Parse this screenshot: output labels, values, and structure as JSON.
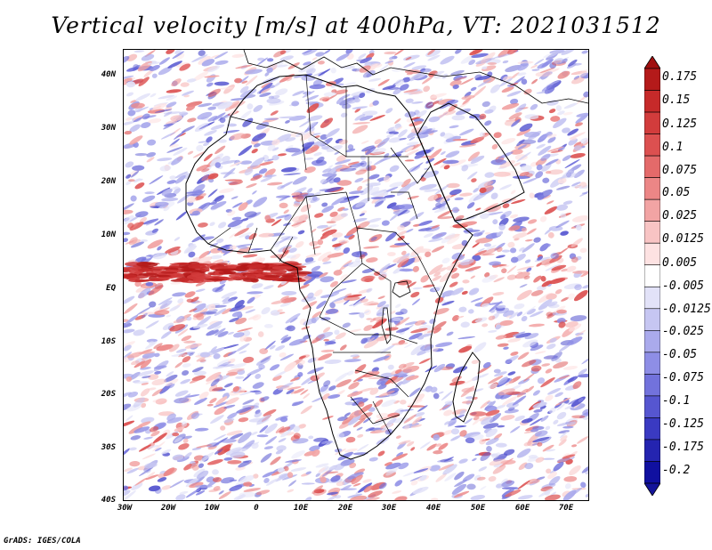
{
  "title": "Vertical velocity [m/s] at 400hPa, VT: 2021031512",
  "axes": {
    "lat_labels": [
      "40N",
      "30N",
      "20N",
      "10N",
      "EQ",
      "10S",
      "20S",
      "30S",
      "40S"
    ],
    "lon_labels": [
      "30W",
      "20W",
      "10W",
      "0",
      "10E",
      "20E",
      "30E",
      "40E",
      "50E",
      "60E",
      "70E"
    ],
    "lat_range": [
      -40,
      45
    ],
    "lon_range": [
      -30,
      75
    ]
  },
  "colorbar": {
    "labels": [
      "0.175",
      "0.15",
      "0.125",
      "0.1",
      "0.075",
      "0.05",
      "0.025",
      "0.0125",
      "0.005",
      "-0.005",
      "-0.0125",
      "-0.025",
      "-0.05",
      "-0.075",
      "-0.1",
      "-0.125",
      "-0.175",
      "-0.2"
    ],
    "colors": [
      "#b41a1a",
      "#c62a2a",
      "#d23c3c",
      "#dc5050",
      "#e46a6a",
      "#ec8686",
      "#f2a4a4",
      "#f8c4c4",
      "#fde2e2",
      "#ffffff",
      "#e2e2f8",
      "#c6c6f2",
      "#aaaaec",
      "#8e8ee6",
      "#7272dc",
      "#5656d0",
      "#3a3ac2",
      "#2424b0",
      "#1010a0"
    ],
    "top_arrow_color": "#a01010",
    "bottom_arrow_color": "#14149a"
  },
  "map": {
    "neutral_color": "#ffffff",
    "sinking_color": "#8e8ee6",
    "rising_color": "#dc5050",
    "coast_color": "#000000"
  },
  "credit": "GrADS: IGES/COLA"
}
